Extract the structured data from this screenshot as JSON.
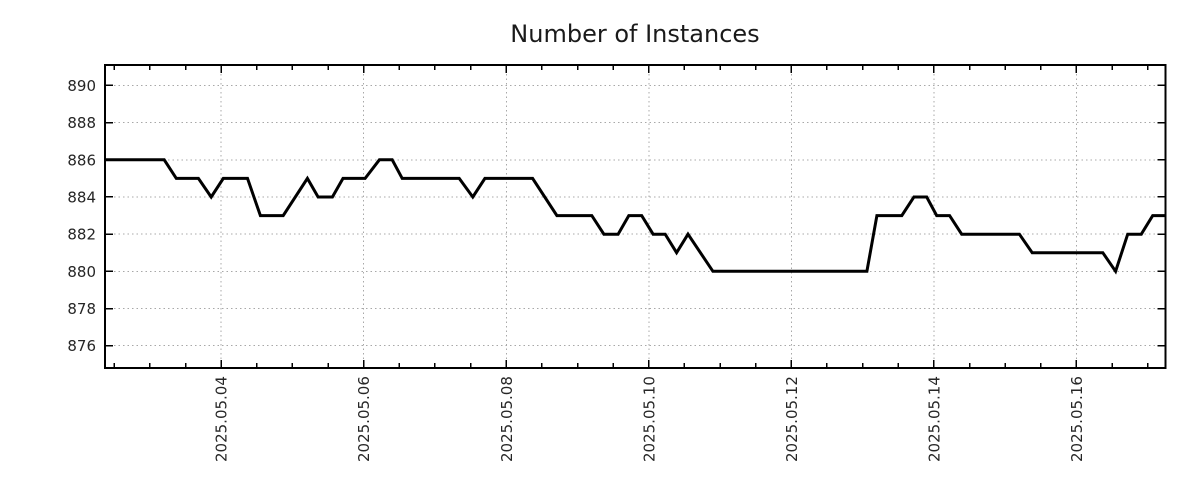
{
  "title": "Number of Instances",
  "chart_data": {
    "type": "line",
    "title": "Number of Instances",
    "grid": true,
    "legend_position": "none",
    "x_axis": {
      "kind": "time",
      "unit": "days since 2025-05-02 00:00",
      "min": 0.37,
      "max": 15.25,
      "minor_tick_interval": 0.5,
      "major_ticks": [
        {
          "day": 2,
          "label": "2025.05.04"
        },
        {
          "day": 4,
          "label": "2025.05.06"
        },
        {
          "day": 6,
          "label": "2025.05.08"
        },
        {
          "day": 8,
          "label": "2025.05.10"
        },
        {
          "day": 10,
          "label": "2025.05.12"
        },
        {
          "day": 12,
          "label": "2025.05.14"
        },
        {
          "day": 14,
          "label": "2025.05.16"
        }
      ]
    },
    "y_axis": {
      "min": 874.8,
      "max": 891.1,
      "ticks": [
        876,
        878,
        880,
        882,
        884,
        886,
        888,
        890
      ]
    },
    "series": [
      {
        "name": "instances",
        "color": "#000000",
        "points": [
          [
            0.37,
            886
          ],
          [
            1.2,
            886
          ],
          [
            1.37,
            885
          ],
          [
            1.68,
            885
          ],
          [
            1.86,
            884
          ],
          [
            2.03,
            885
          ],
          [
            2.37,
            885
          ],
          [
            2.55,
            883
          ],
          [
            2.87,
            883
          ],
          [
            3.21,
            885
          ],
          [
            3.36,
            884
          ],
          [
            3.56,
            884
          ],
          [
            3.71,
            885
          ],
          [
            4.02,
            885
          ],
          [
            4.22,
            886
          ],
          [
            4.4,
            886
          ],
          [
            4.54,
            885
          ],
          [
            5.34,
            885
          ],
          [
            5.53,
            884
          ],
          [
            5.7,
            885
          ],
          [
            6.37,
            885
          ],
          [
            6.71,
            883
          ],
          [
            7.2,
            883
          ],
          [
            7.37,
            882
          ],
          [
            7.57,
            882
          ],
          [
            7.72,
            883
          ],
          [
            7.9,
            883
          ],
          [
            8.06,
            882
          ],
          [
            8.23,
            882
          ],
          [
            8.39,
            881
          ],
          [
            8.55,
            882
          ],
          [
            8.9,
            880
          ],
          [
            11.06,
            880
          ],
          [
            11.2,
            883
          ],
          [
            11.55,
            883
          ],
          [
            11.72,
            884
          ],
          [
            11.9,
            884
          ],
          [
            12.04,
            883
          ],
          [
            12.22,
            883
          ],
          [
            12.39,
            882
          ],
          [
            13.2,
            882
          ],
          [
            13.38,
            881
          ],
          [
            14.37,
            881
          ],
          [
            14.55,
            880
          ],
          [
            14.72,
            882
          ],
          [
            14.91,
            882
          ],
          [
            15.07,
            883
          ],
          [
            15.25,
            883
          ]
        ]
      }
    ]
  },
  "colors": {
    "background": "#ffffff",
    "line": "#000000",
    "grid": "#a8a8a8",
    "axis": "#000000",
    "text": "#262626"
  }
}
